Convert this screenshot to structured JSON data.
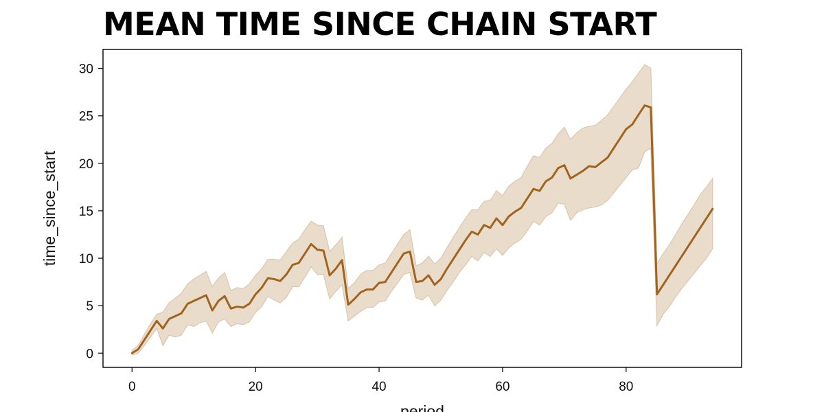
{
  "chart_data": {
    "type": "line",
    "title": "MEAN TIME SINCE CHAIN START",
    "xlabel": "period",
    "ylabel": "time_since_start",
    "xlim": [
      -4.7,
      98.7
    ],
    "ylim": [
      -1.5,
      32
    ],
    "x_ticks": [
      0,
      20,
      40,
      60,
      80
    ],
    "y_ticks": [
      0,
      5,
      10,
      15,
      20,
      25,
      30
    ],
    "grid": false,
    "legend": "none",
    "colors": {
      "line": "#a0641e",
      "band": "#e9dccb",
      "band_edge": "#dcc7ad",
      "axis": "#000000"
    },
    "series": [
      {
        "x": [
          0,
          1,
          2,
          3,
          4,
          5,
          6,
          7,
          8,
          9,
          10,
          11,
          12,
          13,
          14,
          15,
          16,
          17,
          18,
          19,
          20,
          21,
          22,
          23,
          24,
          25,
          26,
          27,
          28,
          29,
          30,
          31,
          32,
          33,
          34,
          35,
          36,
          37,
          38,
          39,
          40,
          41,
          42,
          43,
          44,
          45,
          46,
          47,
          48,
          49,
          50,
          51,
          52,
          53,
          54,
          55,
          56,
          57,
          58,
          59,
          60,
          61,
          62,
          63,
          64,
          65,
          66,
          67,
          68,
          69,
          70,
          71,
          72,
          73,
          74,
          75,
          76,
          77,
          78,
          79,
          80,
          81,
          82,
          83,
          84,
          85,
          86,
          87,
          88,
          89,
          90,
          91,
          92,
          93,
          94
        ],
        "y": [
          0.0,
          0.4,
          1.4,
          2.4,
          3.4,
          2.6,
          3.6,
          3.9,
          4.2,
          5.2,
          5.5,
          5.8,
          6.1,
          4.5,
          5.5,
          6.0,
          4.7,
          4.9,
          4.8,
          5.2,
          6.2,
          6.9,
          7.9,
          7.8,
          7.6,
          8.3,
          9.3,
          9.5,
          10.5,
          11.5,
          10.9,
          10.8,
          8.2,
          8.9,
          9.8,
          5.1,
          5.7,
          6.4,
          6.7,
          6.7,
          7.4,
          7.5,
          8.5,
          9.5,
          10.5,
          10.7,
          7.5,
          7.6,
          8.2,
          7.2,
          7.8,
          8.9,
          9.9,
          10.9,
          11.9,
          12.8,
          12.5,
          13.5,
          13.2,
          14.2,
          13.5,
          14.4,
          14.9,
          15.3,
          16.3,
          17.3,
          17.1,
          18.1,
          18.5,
          19.5,
          19.8,
          18.4,
          18.8,
          19.2,
          19.7,
          19.6,
          20.1,
          20.6,
          21.6,
          22.6,
          23.6,
          24.1,
          25.1,
          26.1,
          25.9,
          6.2,
          7.2,
          8.2,
          9.2,
          10.2,
          11.2,
          12.2,
          13.2,
          14.2,
          15.2
        ],
        "y_lower": [
          -0.2,
          0.0,
          0.8,
          1.7,
          2.6,
          0.8,
          1.9,
          1.7,
          1.9,
          3.0,
          2.8,
          3.2,
          3.4,
          2.1,
          3.3,
          3.6,
          2.8,
          3.1,
          3.0,
          3.3,
          4.3,
          4.9,
          6.0,
          5.6,
          5.3,
          5.9,
          7.0,
          7.0,
          8.0,
          9.1,
          8.3,
          8.3,
          5.7,
          6.5,
          7.2,
          3.4,
          3.9,
          4.4,
          4.8,
          4.8,
          5.4,
          5.5,
          6.5,
          7.4,
          8.3,
          8.5,
          5.8,
          5.6,
          6.1,
          5.0,
          5.6,
          6.6,
          7.5,
          8.5,
          9.3,
          10.2,
          9.7,
          10.6,
          10.2,
          11.0,
          10.3,
          11.1,
          11.6,
          12.0,
          12.9,
          13.9,
          13.5,
          14.4,
          14.8,
          15.8,
          15.7,
          14.0,
          14.8,
          15.1,
          15.3,
          15.4,
          15.6,
          16.1,
          16.9,
          17.7,
          18.5,
          19.3,
          19.5,
          21.2,
          21.6,
          2.9,
          4.1,
          4.9,
          5.9,
          6.8,
          7.6,
          8.4,
          9.2,
          10.0,
          11.0
        ],
        "y_upper": [
          0.3,
          0.8,
          2.0,
          3.1,
          4.1,
          4.3,
          5.3,
          5.8,
          6.3,
          7.3,
          7.8,
          8.2,
          8.6,
          7.0,
          7.9,
          8.5,
          6.6,
          6.9,
          6.8,
          7.3,
          8.2,
          8.9,
          9.9,
          9.9,
          9.8,
          10.7,
          11.6,
          12.0,
          13.0,
          13.9,
          13.5,
          13.4,
          10.7,
          11.4,
          12.2,
          6.8,
          7.4,
          8.3,
          8.7,
          8.7,
          9.3,
          9.5,
          10.5,
          11.5,
          12.5,
          13.0,
          9.2,
          9.5,
          10.2,
          9.4,
          10.0,
          11.1,
          12.2,
          13.2,
          14.2,
          15.1,
          15.1,
          16.0,
          16.1,
          17.1,
          16.6,
          17.6,
          18.1,
          18.5,
          19.7,
          20.8,
          20.6,
          21.6,
          22.1,
          23.1,
          23.8,
          22.5,
          23.2,
          23.7,
          23.9,
          24.0,
          24.5,
          25.1,
          26.0,
          26.9,
          27.8,
          28.6,
          29.5,
          30.4,
          30.0,
          9.4,
          10.5,
          11.4,
          12.5,
          13.6,
          14.6,
          15.6,
          16.7,
          17.5,
          18.4
        ]
      }
    ]
  }
}
